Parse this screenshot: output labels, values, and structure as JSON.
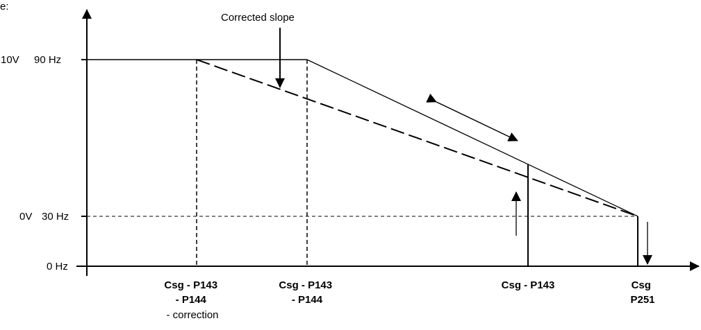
{
  "corner_text": "e:",
  "annotation_title": "Corrected slope",
  "y_axis": {
    "label_10v": "10V",
    "label_90hz": "90 Hz",
    "label_0v": "0V",
    "label_30hz": "30 Hz",
    "label_0hz": "0 Hz"
  },
  "x_axis": {
    "label_1": [
      "Csg - P143",
      "- P144",
      "- correction"
    ],
    "label_2": [
      "Csg - P143",
      "- P144"
    ],
    "label_3": [
      "Csg - P143"
    ],
    "label_4": [
      "Csg",
      "P251"
    ]
  },
  "colors": {
    "stroke": "#000000",
    "background": "#ffffff"
  }
}
